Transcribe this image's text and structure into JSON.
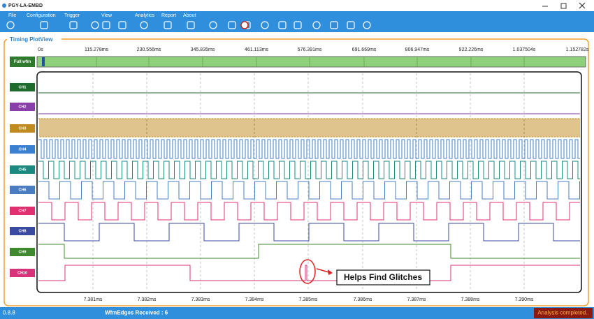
{
  "window": {
    "title": "PGY-LA-EMBD"
  },
  "menu": [
    "File",
    "Configuration",
    "Trigger",
    "View",
    "Analytics",
    "Report",
    "About"
  ],
  "panel": {
    "title": "Timing PlotView",
    "overview_label": "Full wfm",
    "overview_ticks": [
      "0s",
      "115.278ms",
      "230.556ms",
      "345.835ms",
      "461.113ms",
      "576.391ms",
      "691.669ms",
      "806.947ms",
      "922.226ms",
      "1.037504s",
      "1.152782s"
    ],
    "channels": [
      "CH1",
      "CH2",
      "CH3",
      "CH4",
      "CH5",
      "CH6",
      "CH7",
      "CH8",
      "CH9",
      "CH10"
    ],
    "time_ticks": [
      "7.381ms",
      "7.382ms",
      "7.383ms",
      "7.384ms",
      "7.385ms",
      "7.386ms",
      "7.387ms",
      "7.388ms",
      "7.390ms"
    ]
  },
  "annotation": "Helps Find Glitches",
  "status": {
    "version": "0.8.8",
    "edges": "WfmEdges Received : 6",
    "state": "Analysis completed.."
  }
}
